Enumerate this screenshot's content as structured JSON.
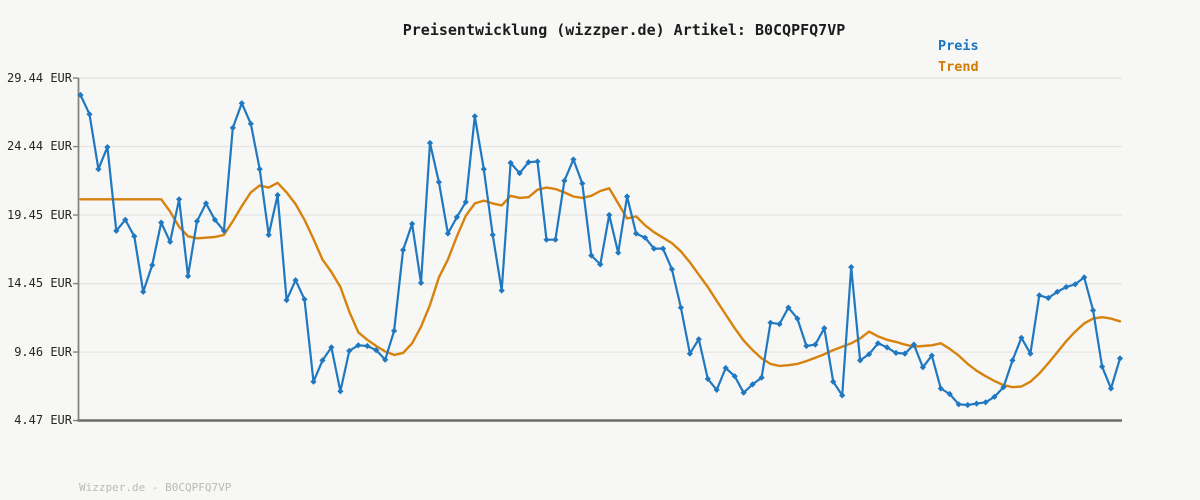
{
  "chart": {
    "title": "Preisentwicklung (wizzper.de) Artikel: B0CQPFQ7VP"
  },
  "legend": {
    "preis": {
      "label": "Preis",
      "color": "#1a74c2"
    },
    "trend": {
      "label": "Trend",
      "color": "#d17c04"
    }
  },
  "footer": {
    "watermark": "Wizzper.de - B0CQPFQ7VP"
  },
  "colors": {
    "background": "#f7f7f5",
    "price_line": "#1f78c0",
    "trend_line": "#d8820e",
    "grid": "#e4e4e2",
    "axis_left": "#848482",
    "axis_bottom": "#6d6d6b",
    "title_text": "#1c1c1c",
    "tick_text": "#262624",
    "watermark_text": "#b9b9b7"
  },
  "chart_data": {
    "type": "line",
    "title": "Preisentwicklung (wizzper.de) Artikel: B0CQPFQ7VP",
    "xlabel": "",
    "ylabel": "",
    "x_axis_labels_visible": false,
    "ylim": [
      4.47,
      29.44
    ],
    "grid": "horizontal",
    "legend_position": "top-right",
    "yticks": [
      {
        "value": 29.44,
        "label": "29.44 EUR"
      },
      {
        "value": 24.44,
        "label": "24.44 EUR"
      },
      {
        "value": 19.45,
        "label": "19.45 EUR"
      },
      {
        "value": 14.45,
        "label": "14.45 EUR"
      },
      {
        "value": 9.46,
        "label": "9.46 EUR"
      },
      {
        "value": 4.47,
        "label": "4.47 EUR"
      }
    ],
    "unit": "EUR",
    "series": [
      {
        "name": "Trend",
        "color": "#d8820e",
        "marker": "none",
        "line_width": 2.4,
        "values": [
          20.6,
          20.6,
          20.6,
          20.6,
          20.6,
          20.6,
          20.6,
          20.6,
          20.6,
          20.6,
          19.7,
          18.6,
          17.9,
          17.75,
          17.8,
          17.85,
          18.0,
          19.0,
          20.1,
          21.1,
          21.6,
          21.45,
          21.8,
          21.1,
          20.25,
          19.1,
          17.7,
          16.2,
          15.3,
          14.2,
          12.4,
          10.9,
          10.35,
          9.9,
          9.5,
          9.25,
          9.4,
          10.1,
          11.3,
          12.9,
          14.9,
          16.2,
          17.9,
          19.4,
          20.3,
          20.5,
          20.3,
          20.15,
          20.85,
          20.7,
          20.75,
          21.3,
          21.45,
          21.35,
          21.1,
          20.8,
          20.7,
          20.85,
          21.2,
          21.4,
          20.3,
          19.2,
          19.35,
          18.7,
          18.2,
          17.8,
          17.4,
          16.8,
          16.0,
          15.1,
          14.2,
          13.2,
          12.2,
          11.2,
          10.3,
          9.6,
          9.0,
          8.6,
          8.45,
          8.5,
          8.6,
          8.8,
          9.05,
          9.3,
          9.6,
          9.85,
          10.1,
          10.45,
          10.95,
          10.6,
          10.35,
          10.2,
          10.0,
          9.85,
          9.9,
          9.95,
          10.1,
          9.7,
          9.2,
          8.6,
          8.1,
          7.7,
          7.35,
          7.05,
          6.9,
          6.95,
          7.3,
          7.9,
          8.65,
          9.45,
          10.25,
          10.95,
          11.55,
          11.9,
          12.0,
          11.9,
          11.7
        ]
      },
      {
        "name": "Preis",
        "color": "#1f78c0",
        "marker": "diamond",
        "line_width": 2.2,
        "values": [
          28.2,
          26.8,
          22.8,
          24.4,
          18.3,
          19.1,
          17.9,
          13.85,
          15.8,
          18.9,
          17.5,
          20.6,
          15.0,
          19.0,
          20.3,
          19.1,
          18.3,
          25.8,
          27.6,
          26.1,
          22.8,
          18.0,
          20.9,
          13.25,
          14.7,
          13.3,
          7.3,
          8.85,
          9.8,
          6.6,
          9.55,
          9.95,
          9.9,
          9.6,
          8.9,
          11.0,
          16.9,
          18.8,
          14.5,
          24.7,
          21.85,
          18.1,
          19.3,
          20.4,
          26.65,
          22.8,
          18.0,
          13.95,
          23.25,
          22.5,
          23.3,
          23.35,
          17.65,
          17.65,
          21.95,
          23.5,
          21.75,
          16.5,
          15.85,
          19.45,
          16.7,
          20.8,
          18.1,
          17.8,
          17.0,
          17.0,
          15.5,
          12.7,
          9.35,
          10.4,
          7.5,
          6.7,
          8.3,
          7.7,
          6.5,
          7.1,
          7.6,
          11.6,
          11.5,
          12.7,
          11.9,
          9.9,
          10.0,
          11.2,
          7.3,
          6.3,
          15.65,
          8.85,
          9.3,
          10.1,
          9.8,
          9.4,
          9.35,
          10.0,
          8.35,
          9.2,
          6.8,
          6.4,
          5.65,
          5.6,
          5.7,
          5.8,
          6.2,
          6.9,
          8.85,
          10.5,
          9.35,
          13.6,
          13.4,
          13.85,
          14.2,
          14.4,
          14.9,
          12.5,
          8.4,
          6.8,
          9.0
        ]
      }
    ]
  }
}
